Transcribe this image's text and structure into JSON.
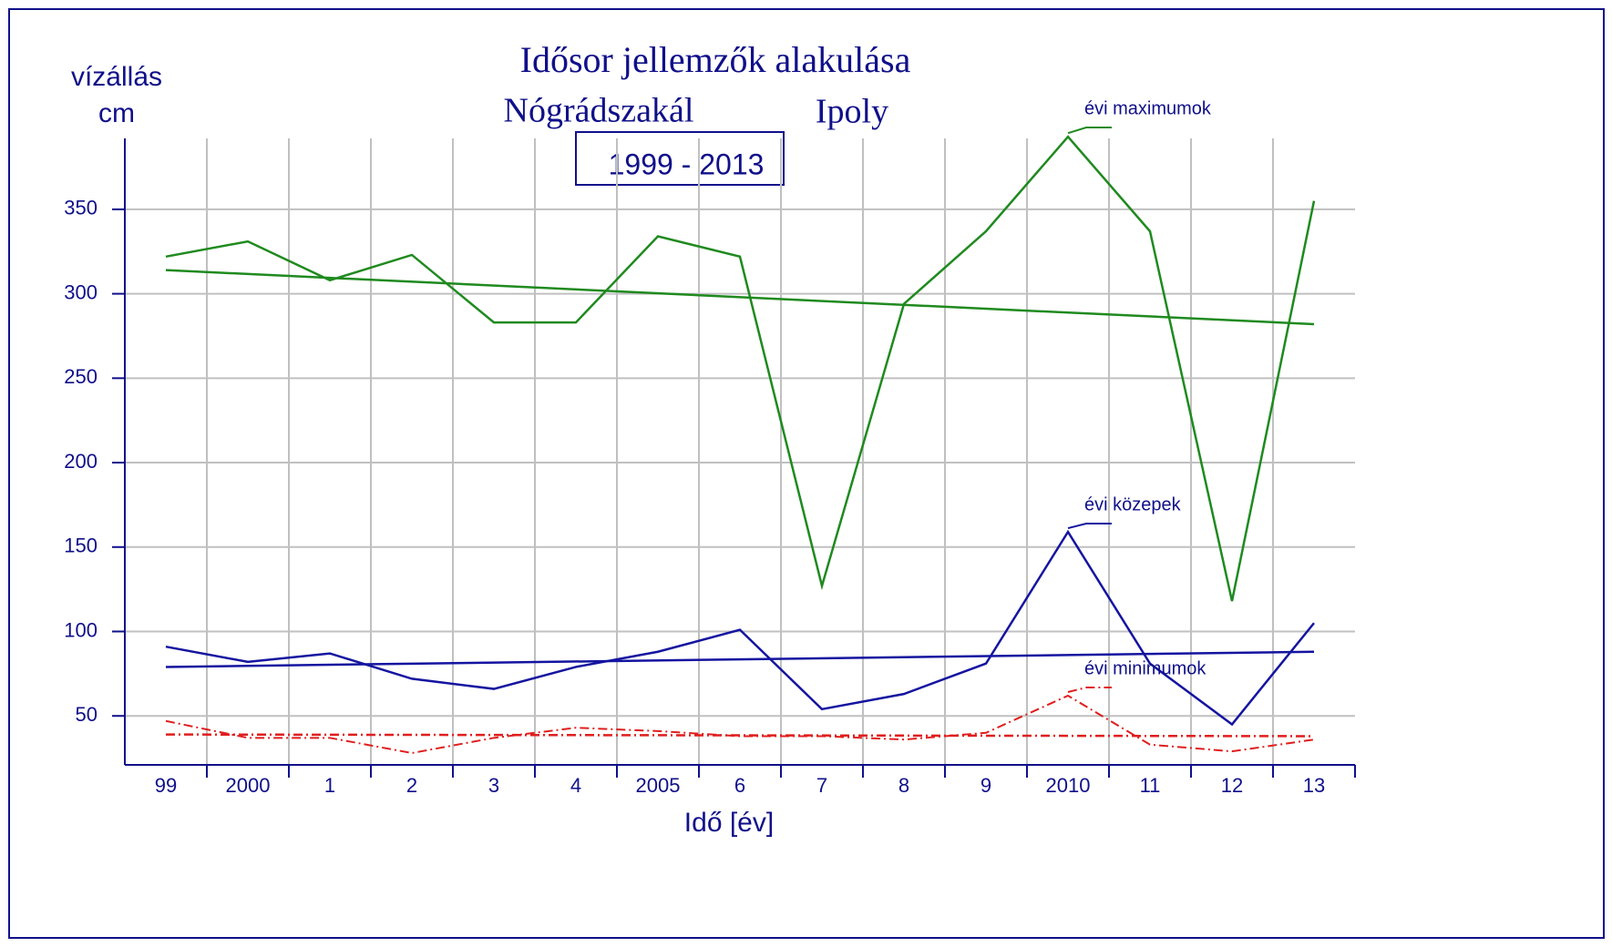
{
  "chart_data": {
    "type": "line",
    "title": "Idősor jellemzők alakulása",
    "subtitle": "Nógrádszakál",
    "river": "Ipoly",
    "period": "1999 - 2013",
    "y_label": [
      "vízállás",
      "cm"
    ],
    "x_label": "Idő [év]",
    "categories": [
      "99",
      "2000",
      "1",
      "2",
      "3",
      "4",
      "2005",
      "6",
      "7",
      "8",
      "9",
      "2010",
      "11",
      "12",
      "13"
    ],
    "series": [
      {
        "name": "évi maximumok",
        "color": "#1f8a1f",
        "style": "solid",
        "values": [
          322,
          331,
          308,
          323,
          283,
          283,
          334,
          322,
          127,
          294,
          337,
          393,
          337,
          118,
          355
        ],
        "trend": [
          314,
          282
        ]
      },
      {
        "name": "évi közepek",
        "color": "#1414a0",
        "style": "solid",
        "values": [
          91,
          82,
          87,
          72,
          66,
          79,
          88,
          101,
          54,
          63,
          81,
          159,
          81,
          45,
          105
        ],
        "trend": [
          79,
          88
        ]
      },
      {
        "name": "évi minimumok",
        "color": "#e01e1e",
        "style": "dashdot",
        "values": [
          47,
          37,
          37,
          28,
          37,
          43,
          41,
          38,
          38,
          36,
          40,
          62,
          33,
          29,
          36
        ],
        "trend": [
          39,
          38
        ]
      }
    ],
    "ylim": [
      21,
      392
    ],
    "yticks": [
      50,
      100,
      150,
      200,
      250,
      300,
      350
    ],
    "grid": true
  }
}
